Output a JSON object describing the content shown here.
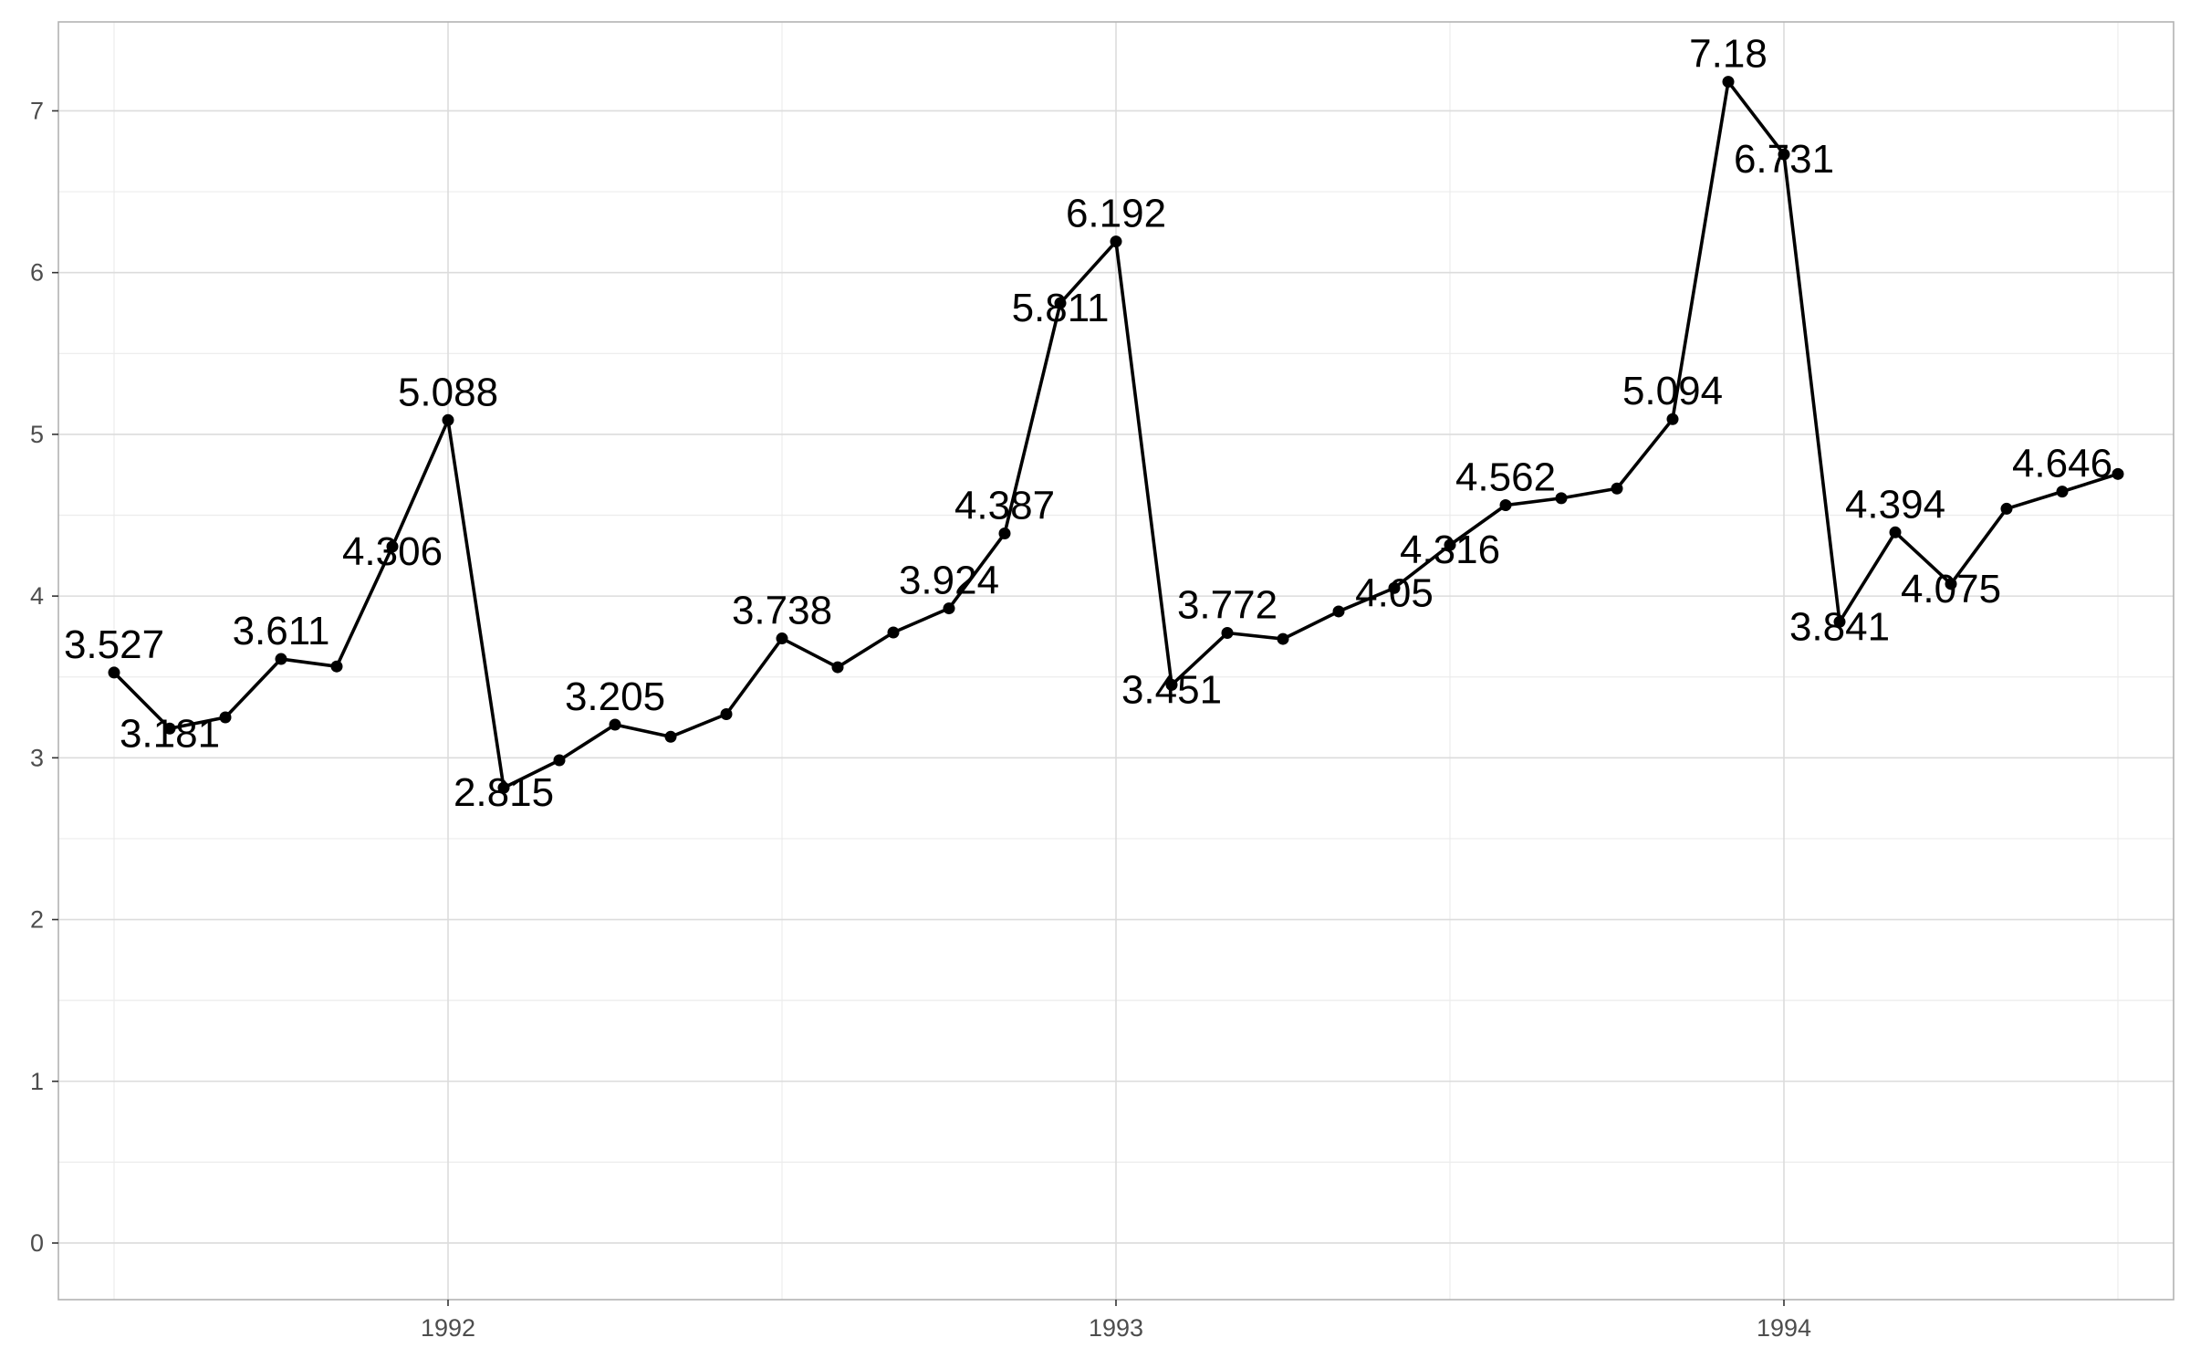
{
  "chart_data": {
    "type": "line",
    "title": "",
    "xlabel": "",
    "ylabel": "",
    "x_ticks": [
      "1992",
      "1993",
      "1994"
    ],
    "y_ticks": [
      "0",
      "1",
      "2",
      "3",
      "4",
      "5",
      "6",
      "7"
    ],
    "xlim": [
      "1991-06",
      "1994-08"
    ],
    "ylim": [
      -0.35,
      7.55
    ],
    "grid": true,
    "legend": "none",
    "series": [
      {
        "color": "#000000",
        "points": [
          {
            "x": "1991-07",
            "y": 3.527,
            "label": "3.527"
          },
          {
            "x": "1991-08",
            "y": 3.181,
            "label": "3.181"
          },
          {
            "x": "1991-09",
            "y": 3.25,
            "label": ""
          },
          {
            "x": "1991-10",
            "y": 3.611,
            "label": "3.611"
          },
          {
            "x": "1991-11",
            "y": 3.565,
            "label": ""
          },
          {
            "x": "1991-12",
            "y": 4.306,
            "label": "4.306"
          },
          {
            "x": "1992-01",
            "y": 5.088,
            "label": "5.088"
          },
          {
            "x": "1992-02",
            "y": 2.815,
            "label": "2.815"
          },
          {
            "x": "1992-03",
            "y": 2.985,
            "label": ""
          },
          {
            "x": "1992-04",
            "y": 3.205,
            "label": "3.205"
          },
          {
            "x": "1992-05",
            "y": 3.13,
            "label": ""
          },
          {
            "x": "1992-06",
            "y": 3.27,
            "label": ""
          },
          {
            "x": "1992-07",
            "y": 3.738,
            "label": "3.738"
          },
          {
            "x": "1992-08",
            "y": 3.56,
            "label": ""
          },
          {
            "x": "1992-09",
            "y": 3.775,
            "label": ""
          },
          {
            "x": "1992-10",
            "y": 3.924,
            "label": "3.924"
          },
          {
            "x": "1992-11",
            "y": 4.387,
            "label": "4.387"
          },
          {
            "x": "1992-12",
            "y": 5.811,
            "label": "5.811"
          },
          {
            "x": "1993-01",
            "y": 6.192,
            "label": "6.192"
          },
          {
            "x": "1993-02",
            "y": 3.451,
            "label": "3.451"
          },
          {
            "x": "1993-03",
            "y": 3.772,
            "label": "3.772"
          },
          {
            "x": "1993-04",
            "y": 3.735,
            "label": ""
          },
          {
            "x": "1993-05",
            "y": 3.905,
            "label": ""
          },
          {
            "x": "1993-06",
            "y": 4.05,
            "label": "4.05"
          },
          {
            "x": "1993-07",
            "y": 4.316,
            "label": "4.316"
          },
          {
            "x": "1993-08",
            "y": 4.562,
            "label": "4.562"
          },
          {
            "x": "1993-09",
            "y": 4.605,
            "label": ""
          },
          {
            "x": "1993-10",
            "y": 4.665,
            "label": ""
          },
          {
            "x": "1993-11",
            "y": 5.094,
            "label": "5.094"
          },
          {
            "x": "1993-12",
            "y": 7.18,
            "label": "7.18"
          },
          {
            "x": "1994-01",
            "y": 6.731,
            "label": "6.731"
          },
          {
            "x": "1994-02",
            "y": 3.841,
            "label": "3.841"
          },
          {
            "x": "1994-03",
            "y": 4.394,
            "label": "4.394"
          },
          {
            "x": "1994-04",
            "y": 4.075,
            "label": "4.075"
          },
          {
            "x": "1994-05",
            "y": 4.54,
            "label": ""
          },
          {
            "x": "1994-06",
            "y": 4.646,
            "label": "4.646"
          },
          {
            "x": "1994-07",
            "y": 4.755,
            "label": ""
          }
        ]
      }
    ]
  }
}
